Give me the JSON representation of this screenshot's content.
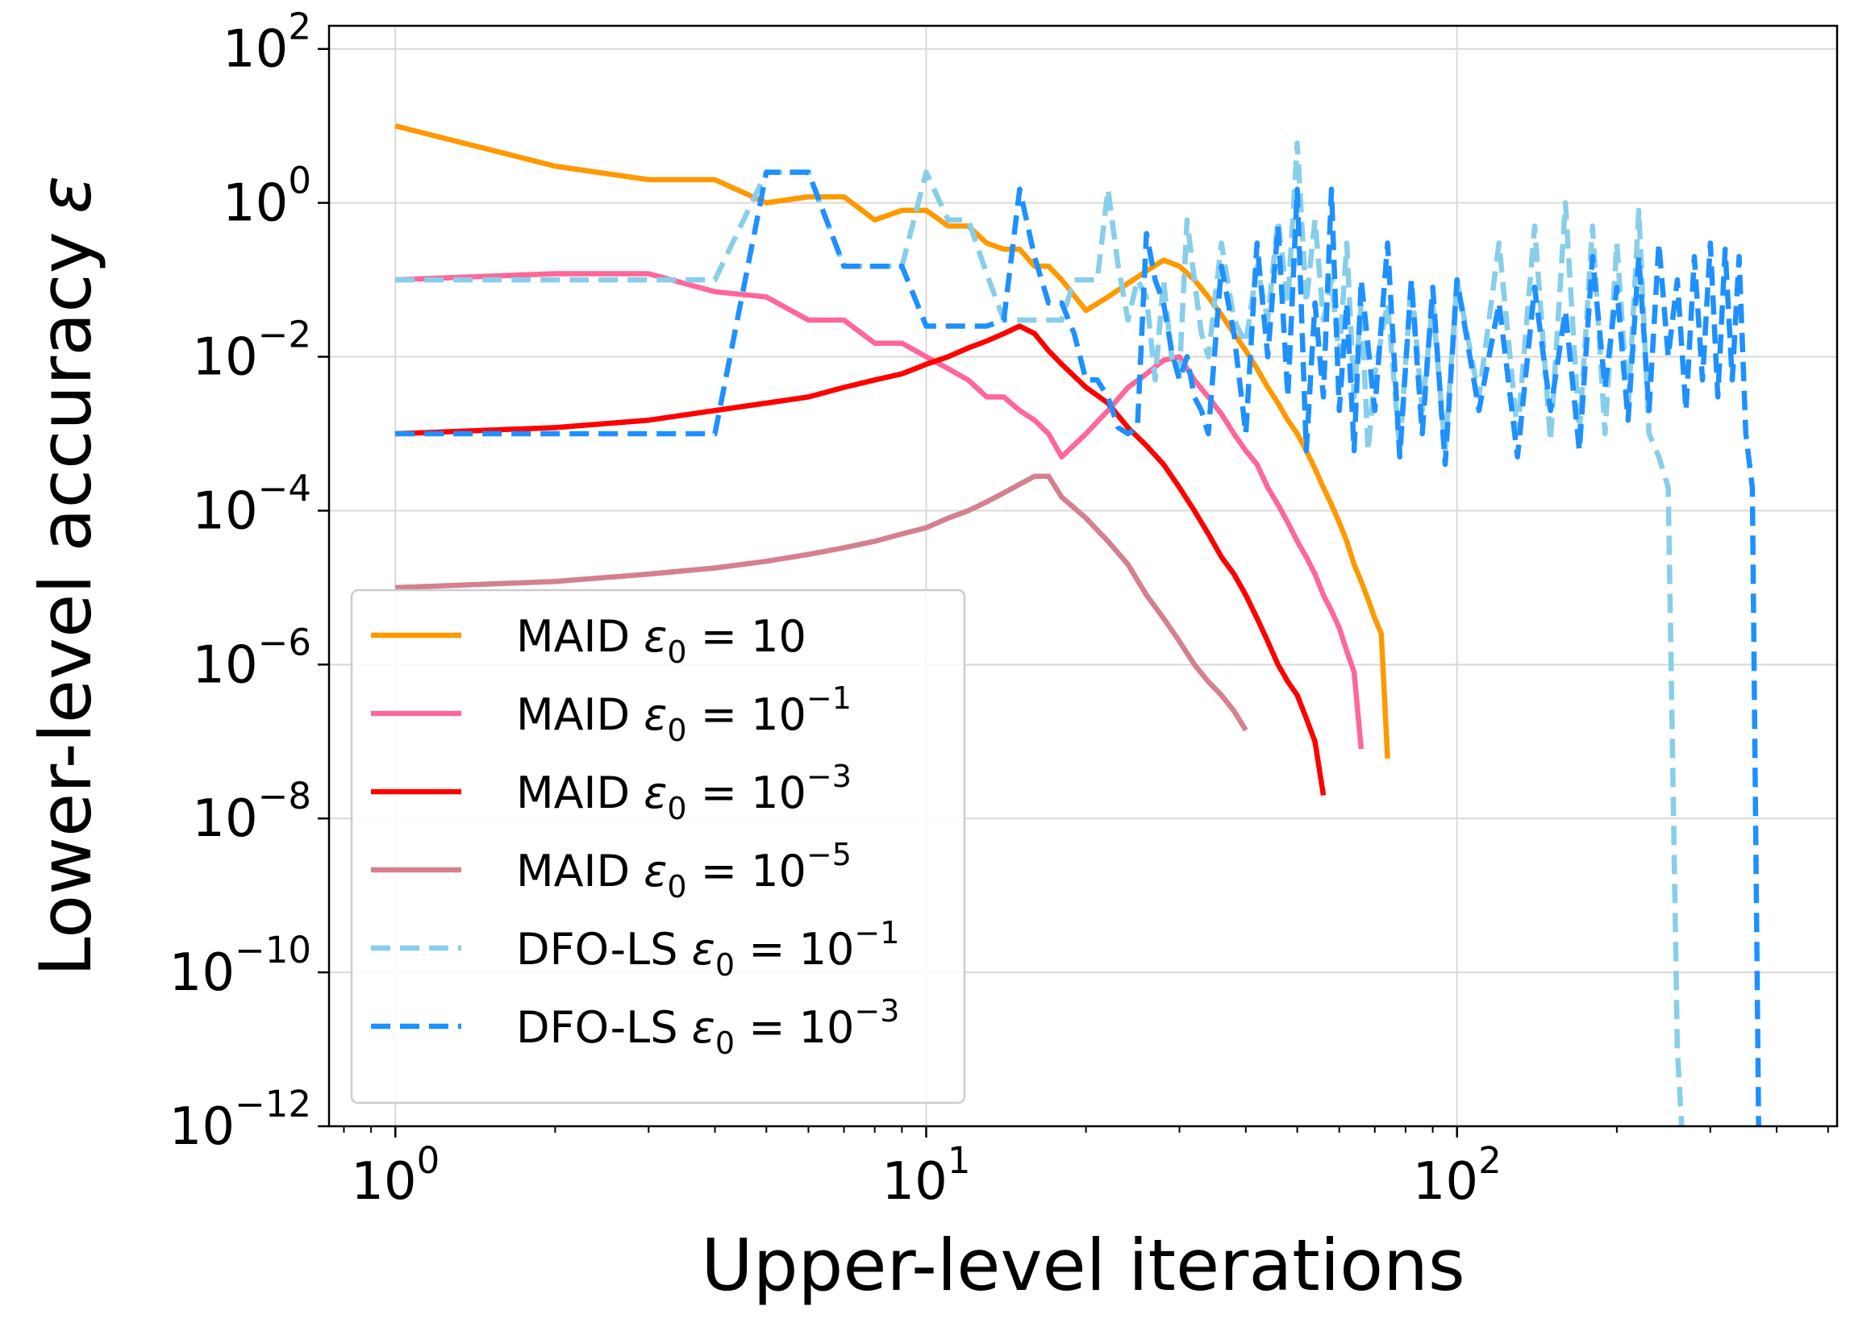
{
  "chart_data": {
    "type": "line",
    "xlabel": "Upper-level iterations",
    "ylabel_prefix": "Lower-level accuracy",
    "ylabel_symbol": "ε",
    "x_scale": "log",
    "y_scale": "log",
    "xlim": [
      0.75,
      520
    ],
    "ylim": [
      1e-12,
      200
    ],
    "grid": true,
    "legend_position": "lower-left",
    "x_ticks": [
      {
        "value": 1,
        "base": "10",
        "exp": "0"
      },
      {
        "value": 10,
        "base": "10",
        "exp": "1"
      },
      {
        "value": 100,
        "base": "10",
        "exp": "2"
      }
    ],
    "y_ticks": [
      {
        "value": 100,
        "base": "10",
        "exp": "2"
      },
      {
        "value": 1,
        "base": "10",
        "exp": "0"
      },
      {
        "value": 0.01,
        "base": "10",
        "exp": "−2"
      },
      {
        "value": 0.0001,
        "base": "10",
        "exp": "−4"
      },
      {
        "value": 1e-06,
        "base": "10",
        "exp": "−6"
      },
      {
        "value": 1e-08,
        "base": "10",
        "exp": "−8"
      },
      {
        "value": 1e-10,
        "base": "10",
        "exp": "−10"
      },
      {
        "value": 1e-12,
        "base": "10",
        "exp": "−12"
      }
    ],
    "series": [
      {
        "name": "MAID ε0 = 10",
        "legend_parts": {
          "prefix": "MAID ",
          "value": "10",
          "exp": ""
        },
        "color": "#FF9900",
        "dash": false,
        "x": [
          1,
          2,
          3,
          4,
          5,
          6,
          7,
          8,
          9,
          10,
          11,
          12,
          13,
          14,
          15,
          16,
          17,
          18,
          20,
          22,
          24,
          26,
          28,
          30,
          32,
          34,
          36,
          38,
          40,
          42,
          44,
          46,
          48,
          50,
          52,
          54,
          56,
          58,
          60,
          62,
          64,
          66,
          68,
          70,
          72,
          74
        ],
        "y": [
          10,
          3,
          2,
          2,
          1,
          1.2,
          1.2,
          0.6,
          0.8,
          0.8,
          0.5,
          0.5,
          0.3,
          0.25,
          0.25,
          0.15,
          0.15,
          0.1,
          0.04,
          0.06,
          0.09,
          0.13,
          0.18,
          0.15,
          0.1,
          0.06,
          0.035,
          0.02,
          0.012,
          0.007,
          0.004,
          0.0025,
          0.0015,
          0.001,
          0.0006,
          0.00035,
          0.0002,
          0.00012,
          7e-05,
          4e-05,
          2e-05,
          1.2e-05,
          7e-06,
          4e-06,
          2.5e-06,
          6e-08
        ]
      },
      {
        "name": "MAID ε0 = 10⁻¹",
        "legend_parts": {
          "prefix": "MAID ",
          "value": "10",
          "exp": "−1"
        },
        "color": "#FF6699",
        "dash": false,
        "x": [
          1,
          2,
          3,
          4,
          5,
          6,
          7,
          8,
          9,
          10,
          11,
          12,
          13,
          14,
          15,
          16,
          17,
          18,
          20,
          22,
          24,
          26,
          28,
          30,
          32,
          34,
          36,
          38,
          40,
          42,
          44,
          46,
          48,
          50,
          52,
          54,
          56,
          58,
          60,
          62,
          64,
          66
        ],
        "y": [
          0.1,
          0.12,
          0.12,
          0.07,
          0.06,
          0.03,
          0.03,
          0.015,
          0.015,
          0.01,
          0.007,
          0.005,
          0.003,
          0.003,
          0.002,
          0.0015,
          0.001,
          0.0005,
          0.001,
          0.002,
          0.004,
          0.006,
          0.009,
          0.01,
          0.005,
          0.003,
          0.0018,
          0.001,
          0.0006,
          0.0004,
          0.0002,
          0.00012,
          7e-05,
          4e-05,
          2.5e-05,
          1.5e-05,
          8e-06,
          5e-06,
          3e-06,
          1.5e-06,
          8e-07,
          8e-08
        ]
      },
      {
        "name": "MAID ε0 = 10⁻³",
        "legend_parts": {
          "prefix": "MAID ",
          "value": "10",
          "exp": "−3"
        },
        "color": "#FF0000",
        "dash": false,
        "x": [
          1,
          2,
          3,
          4,
          5,
          6,
          7,
          8,
          9,
          10,
          11,
          12,
          13,
          14,
          15,
          16,
          17,
          18,
          20,
          22,
          24,
          26,
          28,
          30,
          32,
          34,
          36,
          38,
          40,
          42,
          44,
          46,
          48,
          50,
          52,
          54,
          56
        ],
        "y": [
          0.001,
          0.0012,
          0.0015,
          0.002,
          0.0025,
          0.003,
          0.004,
          0.005,
          0.006,
          0.008,
          0.01,
          0.013,
          0.016,
          0.02,
          0.025,
          0.02,
          0.012,
          0.008,
          0.004,
          0.0025,
          0.0012,
          0.0007,
          0.0004,
          0.0002,
          0.0001,
          5e-05,
          2.5e-05,
          1.5e-05,
          8e-06,
          4e-06,
          2e-06,
          1e-06,
          6e-07,
          4e-07,
          2e-07,
          1e-07,
          2e-08
        ]
      },
      {
        "name": "MAID ε0 = 10⁻⁵",
        "legend_parts": {
          "prefix": "MAID ",
          "value": "10",
          "exp": "−5"
        },
        "color": "#D4808F",
        "dash": false,
        "x": [
          1,
          2,
          3,
          4,
          5,
          6,
          7,
          8,
          9,
          10,
          11,
          12,
          13,
          14,
          15,
          16,
          17,
          18,
          20,
          22,
          24,
          26,
          28,
          30,
          32,
          34,
          36,
          38,
          40
        ],
        "y": [
          1e-05,
          1.2e-05,
          1.5e-05,
          1.8e-05,
          2.2e-05,
          2.7e-05,
          3.3e-05,
          4e-05,
          5e-05,
          6e-05,
          8e-05,
          0.0001,
          0.00013,
          0.00017,
          0.00022,
          0.00028,
          0.00028,
          0.00015,
          8e-05,
          4e-05,
          2e-05,
          8e-06,
          4e-06,
          2e-06,
          1e-06,
          6e-07,
          4e-07,
          2.5e-07,
          1.4e-07
        ]
      },
      {
        "name": "DFO-LS ε0 = 10⁻¹",
        "legend_parts": {
          "prefix": "DFO-LS ",
          "value": "10",
          "exp": "−1"
        },
        "color": "#87CEEB",
        "dash": true,
        "x": [
          1,
          2,
          3,
          4,
          5,
          6,
          7,
          8,
          9,
          10,
          11,
          12,
          13,
          14,
          15,
          16,
          17,
          18,
          19,
          20,
          21,
          22,
          23,
          24,
          25,
          26,
          27,
          28,
          29,
          30,
          31,
          32,
          33,
          34,
          36,
          38,
          40,
          42,
          44,
          46,
          48,
          50,
          52,
          54,
          56,
          58,
          60,
          62,
          64,
          66,
          68,
          70,
          74,
          78,
          82,
          86,
          90,
          95,
          100,
          110,
          120,
          130,
          140,
          150,
          160,
          170,
          180,
          190,
          200,
          210,
          220,
          230,
          240,
          250,
          260,
          265
        ],
        "y": [
          0.1,
          0.1,
          0.1,
          0.1,
          2.5,
          2.5,
          0.15,
          0.15,
          0.15,
          2.5,
          0.6,
          0.6,
          0.12,
          0.03,
          0.03,
          0.03,
          0.03,
          0.03,
          0.1,
          0.1,
          0.1,
          1.5,
          0.15,
          0.03,
          0.1,
          0.06,
          0.005,
          0.1,
          0.01,
          0.006,
          0.6,
          0.1,
          0.02,
          0.01,
          0.3,
          0.03,
          0.015,
          0.15,
          0.03,
          0.6,
          0.05,
          6,
          0.05,
          0.6,
          0.03,
          0.1,
          0.01,
          0.3,
          0.003,
          0.05,
          0.0006,
          0.006,
          0.05,
          0.0006,
          0.1,
          0.002,
          0.05,
          0.0006,
          0.1,
          0.003,
          0.3,
          0.001,
          0.5,
          0.0008,
          1,
          0.001,
          0.5,
          0.001,
          0.3,
          0.002,
          0.8,
          0.001,
          0.0005,
          0.0002,
          1e-11,
          1e-12
        ]
      },
      {
        "name": "DFO-LS ε0 = 10⁻³",
        "legend_parts": {
          "prefix": "DFO-LS ",
          "value": "10",
          "exp": "−3"
        },
        "color": "#1E90FF",
        "dash": true,
        "x": [
          1,
          2,
          3,
          4,
          5,
          6,
          7,
          8,
          9,
          10,
          11,
          12,
          13,
          14,
          15,
          16,
          17,
          18,
          19,
          20,
          21,
          22,
          23,
          24,
          25,
          26,
          27,
          28,
          29,
          30,
          31,
          32,
          33,
          34,
          36,
          38,
          40,
          42,
          44,
          46,
          48,
          50,
          52,
          54,
          56,
          58,
          60,
          62,
          64,
          66,
          70,
          74,
          78,
          82,
          86,
          90,
          95,
          100,
          110,
          120,
          130,
          140,
          150,
          160,
          170,
          180,
          190,
          200,
          210,
          220,
          230,
          240,
          250,
          260,
          270,
          280,
          290,
          300,
          310,
          320,
          330,
          340,
          350,
          360,
          370
        ],
        "y": [
          0.001,
          0.001,
          0.001,
          0.001,
          2.5,
          2.5,
          0.15,
          0.15,
          0.15,
          0.025,
          0.025,
          0.025,
          0.025,
          0.03,
          1.5,
          0.2,
          0.05,
          0.05,
          0.02,
          0.005,
          0.005,
          0.003,
          0.0012,
          0.001,
          0.0012,
          0.4,
          0.1,
          0.05,
          0.012,
          0.005,
          0.01,
          0.003,
          0.002,
          0.001,
          0.15,
          0.02,
          0.001,
          0.3,
          0.01,
          0.5,
          0.003,
          1.5,
          0.0006,
          0.05,
          0.003,
          1.5,
          0.002,
          0.05,
          0.0006,
          0.1,
          0.002,
          0.3,
          0.0005,
          0.1,
          0.001,
          0.08,
          0.0004,
          0.1,
          0.002,
          0.05,
          0.0005,
          0.08,
          0.002,
          0.04,
          0.0006,
          0.2,
          0.004,
          0.08,
          0.0015,
          0.2,
          0.002,
          0.3,
          0.01,
          0.1,
          0.002,
          0.2,
          0.005,
          0.3,
          0.003,
          0.25,
          0.005,
          0.2,
          0.001,
          0.0002,
          1e-12
        ]
      }
    ]
  }
}
